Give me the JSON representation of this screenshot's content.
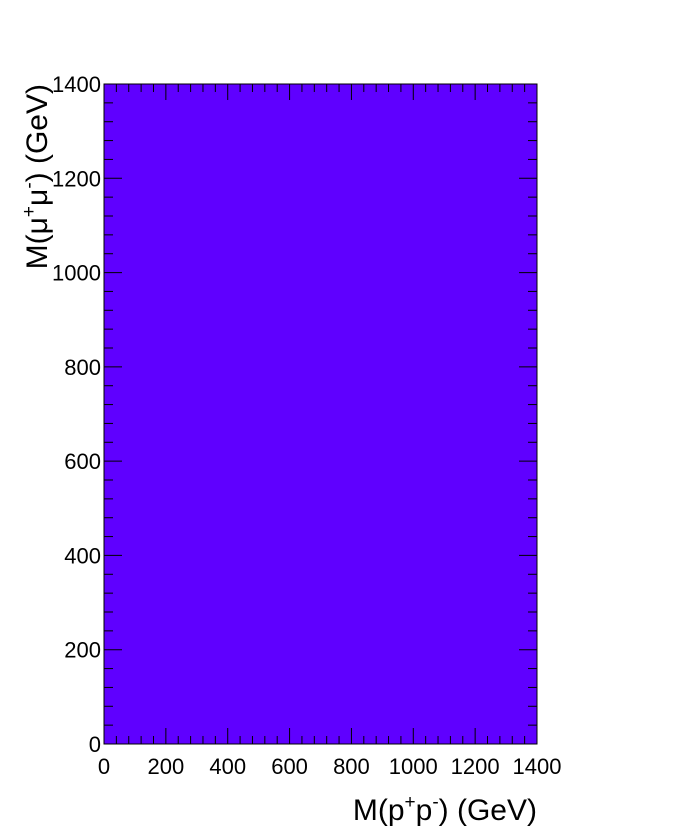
{
  "chart_data": {
    "type": "heatmap",
    "title": "",
    "xlabel": {
      "pre": "M(p",
      "sup1": "+",
      "mid": "p",
      "sup2": "-",
      "post": ") (GeV)"
    },
    "ylabel": {
      "pre": "M(μ",
      "sup1": "+",
      "mid": "μ",
      "sup2": "-",
      "post": ") (GeV)"
    },
    "xlim": [
      0,
      1400
    ],
    "ylim": [
      0,
      1400
    ],
    "x_ticks": [
      0,
      200,
      400,
      600,
      800,
      1000,
      1200,
      1400
    ],
    "y_ticks": [
      0,
      200,
      400,
      600,
      800,
      1000,
      1200,
      1400
    ],
    "fill_color": "#5f00ff",
    "grid": false,
    "legend": "none"
  }
}
